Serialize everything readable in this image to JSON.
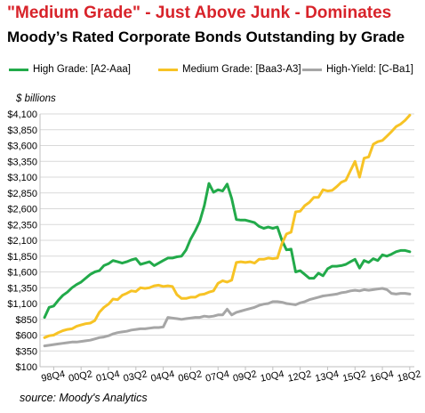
{
  "title": "\"Medium Grade\" - Just Above Junk - Dominates",
  "subtitle": "Moody’s Rated Corporate Bonds Outstanding by Grade",
  "source": "source: Moody's Analytics",
  "chart_data": {
    "type": "line",
    "title": "Moody’s Rated Corporate Bonds Outstanding by Grade",
    "ylabel": "$ billions",
    "xlabel": "",
    "ylim": [
      100,
      4100
    ],
    "yticks": [
      "$100",
      "$350",
      "$600",
      "$850",
      "$1,100",
      "$1,350",
      "$1,600",
      "$1,850",
      "$2,100",
      "$2,350",
      "$2,600",
      "$2,850",
      "$3,100",
      "$3,350",
      "$3,600",
      "$3,850",
      "$4,100"
    ],
    "xticks": [
      "98Q4",
      "00Q2",
      "01Q4",
      "03Q2",
      "04Q4",
      "06Q2",
      "07Q4",
      "09Q2",
      "10Q4",
      "12Q2",
      "13Q4",
      "15Q2",
      "16Q4",
      "18Q2"
    ],
    "grid": true,
    "legend_position": "top",
    "series": [
      {
        "name": "High Grade: [A2-Aaa]",
        "color": "#22aa4a",
        "points": [
          [
            "98Q2",
            880
          ],
          [
            "98Q3",
            1040
          ],
          [
            "98Q4",
            1060
          ],
          [
            "99Q1",
            1150
          ],
          [
            "99Q2",
            1230
          ],
          [
            "99Q3",
            1280
          ],
          [
            "99Q4",
            1350
          ],
          [
            "00Q1",
            1400
          ],
          [
            "00Q2",
            1440
          ],
          [
            "00Q3",
            1500
          ],
          [
            "00Q4",
            1560
          ],
          [
            "01Q1",
            1600
          ],
          [
            "01Q2",
            1620
          ],
          [
            "01Q3",
            1700
          ],
          [
            "01Q4",
            1730
          ],
          [
            "02Q1",
            1780
          ],
          [
            "02Q2",
            1760
          ],
          [
            "02Q3",
            1740
          ],
          [
            "02Q4",
            1760
          ],
          [
            "03Q1",
            1790
          ],
          [
            "03Q2",
            1810
          ],
          [
            "03Q3",
            1720
          ],
          [
            "03Q4",
            1740
          ],
          [
            "04Q1",
            1760
          ],
          [
            "04Q2",
            1700
          ],
          [
            "04Q3",
            1740
          ],
          [
            "04Q4",
            1780
          ],
          [
            "05Q1",
            1820
          ],
          [
            "05Q2",
            1820
          ],
          [
            "05Q3",
            1840
          ],
          [
            "05Q4",
            1850
          ],
          [
            "06Q1",
            1950
          ],
          [
            "06Q2",
            2120
          ],
          [
            "06Q3",
            2250
          ],
          [
            "06Q4",
            2400
          ],
          [
            "07Q1",
            2650
          ],
          [
            "07Q2",
            3000
          ],
          [
            "07Q3",
            2860
          ],
          [
            "07Q4",
            2900
          ],
          [
            "08Q1",
            2880
          ],
          [
            "08Q2",
            2990
          ],
          [
            "08Q3",
            2760
          ],
          [
            "08Q4",
            2430
          ],
          [
            "09Q1",
            2420
          ],
          [
            "09Q2",
            2420
          ],
          [
            "09Q3",
            2400
          ],
          [
            "09Q4",
            2380
          ],
          [
            "10Q1",
            2320
          ],
          [
            "10Q2",
            2290
          ],
          [
            "10Q3",
            2310
          ],
          [
            "10Q4",
            2290
          ],
          [
            "11Q1",
            2310
          ],
          [
            "11Q2",
            2100
          ],
          [
            "11Q3",
            1950
          ],
          [
            "11Q4",
            1960
          ],
          [
            "12Q1",
            1600
          ],
          [
            "12Q2",
            1620
          ],
          [
            "12Q3",
            1560
          ],
          [
            "12Q4",
            1500
          ],
          [
            "13Q1",
            1500
          ],
          [
            "13Q2",
            1580
          ],
          [
            "13Q3",
            1540
          ],
          [
            "13Q4",
            1650
          ],
          [
            "14Q1",
            1690
          ],
          [
            "14Q2",
            1690
          ],
          [
            "14Q3",
            1700
          ],
          [
            "14Q4",
            1720
          ],
          [
            "15Q1",
            1760
          ],
          [
            "15Q2",
            1800
          ],
          [
            "15Q3",
            1660
          ],
          [
            "15Q4",
            1780
          ],
          [
            "16Q1",
            1750
          ],
          [
            "16Q2",
            1810
          ],
          [
            "16Q3",
            1780
          ],
          [
            "16Q4",
            1870
          ],
          [
            "17Q1",
            1850
          ],
          [
            "17Q2",
            1880
          ],
          [
            "17Q3",
            1920
          ],
          [
            "17Q4",
            1940
          ],
          [
            "18Q1",
            1940
          ],
          [
            "18Q2",
            1920
          ]
        ]
      },
      {
        "name": "Medium Grade: [Baa3-A3]",
        "color": "#f7c325",
        "points": [
          [
            "98Q2",
            560
          ],
          [
            "98Q3",
            590
          ],
          [
            "98Q4",
            600
          ],
          [
            "99Q1",
            640
          ],
          [
            "99Q2",
            670
          ],
          [
            "99Q3",
            690
          ],
          [
            "99Q4",
            700
          ],
          [
            "00Q1",
            740
          ],
          [
            "00Q2",
            760
          ],
          [
            "00Q3",
            780
          ],
          [
            "00Q4",
            790
          ],
          [
            "01Q1",
            830
          ],
          [
            "01Q2",
            960
          ],
          [
            "01Q3",
            1040
          ],
          [
            "01Q4",
            1090
          ],
          [
            "02Q1",
            1170
          ],
          [
            "02Q2",
            1160
          ],
          [
            "02Q3",
            1230
          ],
          [
            "02Q4",
            1260
          ],
          [
            "03Q1",
            1300
          ],
          [
            "03Q2",
            1290
          ],
          [
            "03Q3",
            1350
          ],
          [
            "03Q4",
            1340
          ],
          [
            "04Q1",
            1350
          ],
          [
            "04Q2",
            1380
          ],
          [
            "04Q3",
            1390
          ],
          [
            "04Q4",
            1370
          ],
          [
            "05Q1",
            1380
          ],
          [
            "05Q2",
            1370
          ],
          [
            "05Q3",
            1240
          ],
          [
            "05Q4",
            1180
          ],
          [
            "06Q1",
            1180
          ],
          [
            "06Q2",
            1200
          ],
          [
            "06Q3",
            1200
          ],
          [
            "06Q4",
            1240
          ],
          [
            "07Q1",
            1250
          ],
          [
            "07Q2",
            1280
          ],
          [
            "07Q3",
            1300
          ],
          [
            "07Q4",
            1420
          ],
          [
            "08Q1",
            1460
          ],
          [
            "08Q2",
            1440
          ],
          [
            "08Q3",
            1470
          ],
          [
            "08Q4",
            1750
          ],
          [
            "09Q1",
            1760
          ],
          [
            "09Q2",
            1750
          ],
          [
            "09Q3",
            1760
          ],
          [
            "09Q4",
            1740
          ],
          [
            "10Q1",
            1800
          ],
          [
            "10Q2",
            1800
          ],
          [
            "10Q3",
            1820
          ],
          [
            "10Q4",
            1810
          ],
          [
            "11Q1",
            1820
          ],
          [
            "11Q2",
            2050
          ],
          [
            "11Q3",
            2200
          ],
          [
            "11Q4",
            2230
          ],
          [
            "12Q1",
            2550
          ],
          [
            "12Q2",
            2560
          ],
          [
            "12Q3",
            2650
          ],
          [
            "12Q4",
            2700
          ],
          [
            "13Q1",
            2780
          ],
          [
            "13Q2",
            2780
          ],
          [
            "13Q3",
            2900
          ],
          [
            "13Q4",
            2880
          ],
          [
            "14Q1",
            2890
          ],
          [
            "14Q2",
            2950
          ],
          [
            "14Q3",
            3020
          ],
          [
            "14Q4",
            3050
          ],
          [
            "15Q1",
            3200
          ],
          [
            "15Q2",
            3350
          ],
          [
            "15Q3",
            3100
          ],
          [
            "15Q4",
            3400
          ],
          [
            "16Q1",
            3420
          ],
          [
            "16Q2",
            3620
          ],
          [
            "16Q3",
            3660
          ],
          [
            "16Q4",
            3680
          ],
          [
            "17Q1",
            3750
          ],
          [
            "17Q2",
            3820
          ],
          [
            "17Q3",
            3900
          ],
          [
            "17Q4",
            3940
          ],
          [
            "18Q1",
            4000
          ],
          [
            "18Q2",
            4080
          ]
        ]
      },
      {
        "name": "High-Yield: [C-Ba1]",
        "color": "#a6a6a6",
        "points": [
          [
            "98Q2",
            430
          ],
          [
            "98Q3",
            440
          ],
          [
            "98Q4",
            450
          ],
          [
            "99Q1",
            460
          ],
          [
            "99Q2",
            470
          ],
          [
            "99Q3",
            480
          ],
          [
            "99Q4",
            490
          ],
          [
            "00Q1",
            490
          ],
          [
            "00Q2",
            500
          ],
          [
            "00Q3",
            510
          ],
          [
            "00Q4",
            520
          ],
          [
            "01Q1",
            540
          ],
          [
            "01Q2",
            560
          ],
          [
            "01Q3",
            570
          ],
          [
            "01Q4",
            590
          ],
          [
            "02Q1",
            620
          ],
          [
            "02Q2",
            640
          ],
          [
            "02Q3",
            650
          ],
          [
            "02Q4",
            660
          ],
          [
            "03Q1",
            680
          ],
          [
            "03Q2",
            690
          ],
          [
            "03Q3",
            700
          ],
          [
            "03Q4",
            700
          ],
          [
            "04Q1",
            710
          ],
          [
            "04Q2",
            720
          ],
          [
            "04Q3",
            720
          ],
          [
            "04Q4",
            730
          ],
          [
            "05Q1",
            880
          ],
          [
            "05Q2",
            870
          ],
          [
            "05Q3",
            860
          ],
          [
            "05Q4",
            850
          ],
          [
            "06Q1",
            860
          ],
          [
            "06Q2",
            870
          ],
          [
            "06Q3",
            880
          ],
          [
            "06Q4",
            880
          ],
          [
            "07Q1",
            900
          ],
          [
            "07Q2",
            890
          ],
          [
            "07Q3",
            900
          ],
          [
            "07Q4",
            920
          ],
          [
            "08Q1",
            920
          ],
          [
            "08Q2",
            1010
          ],
          [
            "08Q3",
            920
          ],
          [
            "08Q4",
            960
          ],
          [
            "09Q1",
            980
          ],
          [
            "09Q2",
            1000
          ],
          [
            "09Q3",
            1020
          ],
          [
            "09Q4",
            1040
          ],
          [
            "10Q1",
            1070
          ],
          [
            "10Q2",
            1090
          ],
          [
            "10Q3",
            1100
          ],
          [
            "10Q4",
            1130
          ],
          [
            "11Q1",
            1130
          ],
          [
            "11Q2",
            1120
          ],
          [
            "11Q3",
            1100
          ],
          [
            "11Q4",
            1090
          ],
          [
            "12Q1",
            1080
          ],
          [
            "12Q2",
            1110
          ],
          [
            "12Q3",
            1130
          ],
          [
            "12Q4",
            1160
          ],
          [
            "13Q1",
            1180
          ],
          [
            "13Q2",
            1200
          ],
          [
            "13Q3",
            1220
          ],
          [
            "13Q4",
            1230
          ],
          [
            "14Q1",
            1240
          ],
          [
            "14Q2",
            1250
          ],
          [
            "14Q3",
            1270
          ],
          [
            "14Q4",
            1280
          ],
          [
            "15Q1",
            1300
          ],
          [
            "15Q2",
            1310
          ],
          [
            "15Q3",
            1300
          ],
          [
            "15Q4",
            1320
          ],
          [
            "16Q1",
            1310
          ],
          [
            "16Q2",
            1320
          ],
          [
            "16Q3",
            1330
          ],
          [
            "16Q4",
            1340
          ],
          [
            "17Q1",
            1320
          ],
          [
            "17Q2",
            1260
          ],
          [
            "17Q3",
            1250
          ],
          [
            "17Q4",
            1260
          ],
          [
            "18Q1",
            1260
          ],
          [
            "18Q2",
            1250
          ]
        ]
      }
    ]
  }
}
